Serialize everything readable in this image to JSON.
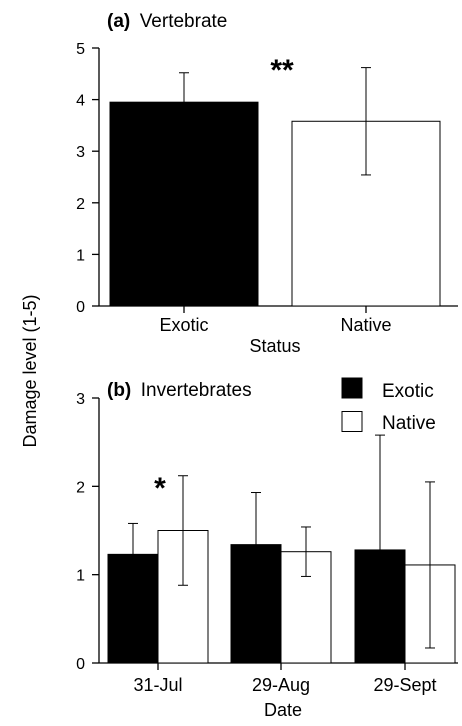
{
  "figure": {
    "ylabel": "Damage level (1-5)"
  },
  "chart_data": [
    {
      "type": "bar",
      "panel": "(a)",
      "title": "Vertebrate",
      "xlabel": "Status",
      "categories": [
        "Exotic",
        "Native"
      ],
      "values": [
        3.95,
        3.58
      ],
      "error": [
        0.57,
        1.04
      ],
      "bar_colors": [
        "#000000",
        "#ffffff"
      ],
      "significance": "**",
      "ylim": [
        0,
        5
      ],
      "yticks": [
        "0",
        "1",
        "2",
        "3",
        "4",
        "5"
      ],
      "grid": false
    },
    {
      "type": "bar",
      "panel": "(b)",
      "title": "Invertebrates",
      "xlabel": "Date",
      "categories": [
        "31-Jul",
        "29-Aug",
        "29-Sept"
      ],
      "series": [
        {
          "name": "Exotic",
          "color": "#000000",
          "values": [
            1.23,
            1.34,
            1.28
          ],
          "error": [
            0.35,
            0.59,
            1.3
          ]
        },
        {
          "name": "Native",
          "color": "#ffffff",
          "values": [
            1.5,
            1.26,
            1.11
          ],
          "error": [
            0.62,
            0.28,
            0.94
          ]
        }
      ],
      "significance": "*",
      "ylim": [
        0,
        3
      ],
      "yticks": [
        "0",
        "1",
        "2",
        "3"
      ],
      "legend": "top-right",
      "grid": false
    }
  ]
}
